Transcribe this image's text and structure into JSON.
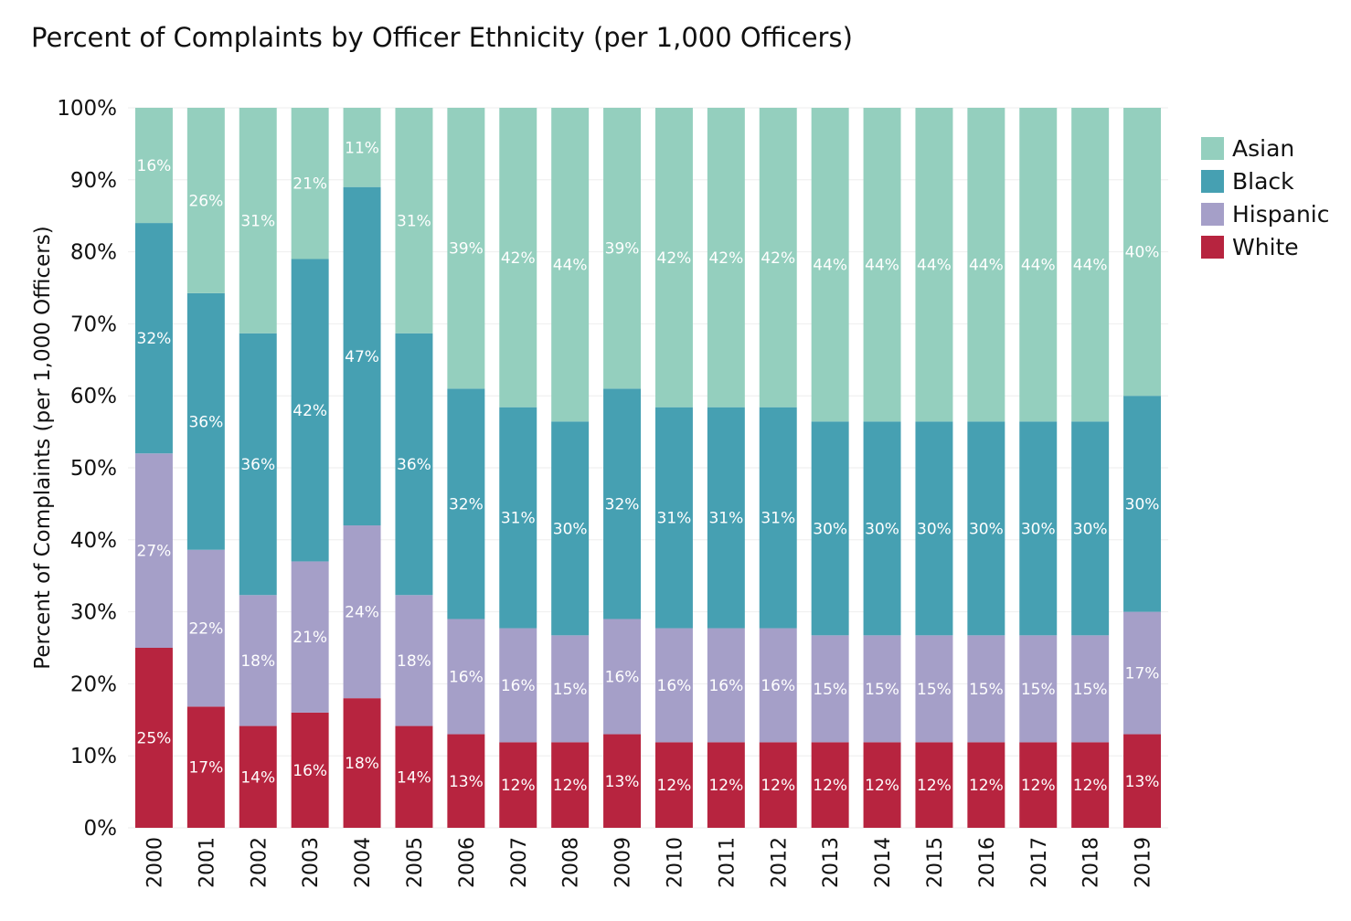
{
  "chart_data": {
    "type": "bar",
    "stacked": true,
    "title": "Percent of Complaints by Officer Ethnicity (per 1,000 Officers)",
    "xlabel": "",
    "ylabel": "Percent of Complaints (per 1,000 Officers)",
    "ylim": [
      0,
      100
    ],
    "yticks": [
      "0%",
      "10%",
      "20%",
      "30%",
      "40%",
      "50%",
      "60%",
      "70%",
      "80%",
      "90%",
      "100%"
    ],
    "legend_position": "top-right",
    "categories": [
      "2000",
      "2001",
      "2002",
      "2003",
      "2004",
      "2005",
      "2006",
      "2007",
      "2008",
      "2009",
      "2010",
      "2011",
      "2012",
      "2013",
      "2014",
      "2015",
      "2016",
      "2017",
      "2018",
      "2019"
    ],
    "series": [
      {
        "name": "White",
        "color": "#b7243f",
        "values": [
          25,
          17,
          14,
          16,
          18,
          14,
          13,
          12,
          12,
          13,
          12,
          12,
          12,
          12,
          12,
          12,
          12,
          12,
          12,
          13
        ],
        "labels": [
          "25%",
          "17%",
          "14%",
          "16%",
          "18%",
          "14%",
          "13%",
          "12%",
          "12%",
          "13%",
          "12%",
          "12%",
          "12%",
          "12%",
          "12%",
          "12%",
          "12%",
          "12%",
          "12%",
          "13%"
        ]
      },
      {
        "name": "Hispanic",
        "color": "#a59fc8",
        "values": [
          27,
          22,
          18,
          21,
          24,
          18,
          16,
          16,
          15,
          16,
          16,
          16,
          16,
          15,
          15,
          15,
          15,
          15,
          15,
          17
        ],
        "labels": [
          "27%",
          "22%",
          "18%",
          "21%",
          "24%",
          "18%",
          "16%",
          "16%",
          "15%",
          "16%",
          "16%",
          "16%",
          "16%",
          "15%",
          "15%",
          "15%",
          "15%",
          "15%",
          "15%",
          "17%"
        ]
      },
      {
        "name": "Black",
        "color": "#46a0b2",
        "values": [
          32,
          36,
          36,
          42,
          47,
          36,
          32,
          31,
          30,
          32,
          31,
          31,
          31,
          30,
          30,
          30,
          30,
          30,
          30,
          30
        ],
        "labels": [
          "32%",
          "36%",
          "36%",
          "42%",
          "47%",
          "36%",
          "32%",
          "31%",
          "30%",
          "32%",
          "31%",
          "31%",
          "31%",
          "30%",
          "30%",
          "30%",
          "30%",
          "30%",
          "30%",
          "30%"
        ]
      },
      {
        "name": "Asian",
        "color": "#94cfbe",
        "values": [
          16,
          26,
          31,
          21,
          11,
          31,
          39,
          42,
          44,
          39,
          42,
          42,
          42,
          44,
          44,
          44,
          44,
          44,
          44,
          40
        ],
        "labels": [
          "16%",
          "26%",
          "31%",
          "21%",
          "11%",
          "31%",
          "39%",
          "42%",
          "44%",
          "39%",
          "42%",
          "42%",
          "42%",
          "44%",
          "44%",
          "44%",
          "44%",
          "44%",
          "44%",
          "40%"
        ]
      }
    ],
    "legend": [
      {
        "name": "Asian",
        "color": "#94cfbe"
      },
      {
        "name": "Black",
        "color": "#46a0b2"
      },
      {
        "name": "Hispanic",
        "color": "#a59fc8"
      },
      {
        "name": "White",
        "color": "#b7243f"
      }
    ]
  }
}
